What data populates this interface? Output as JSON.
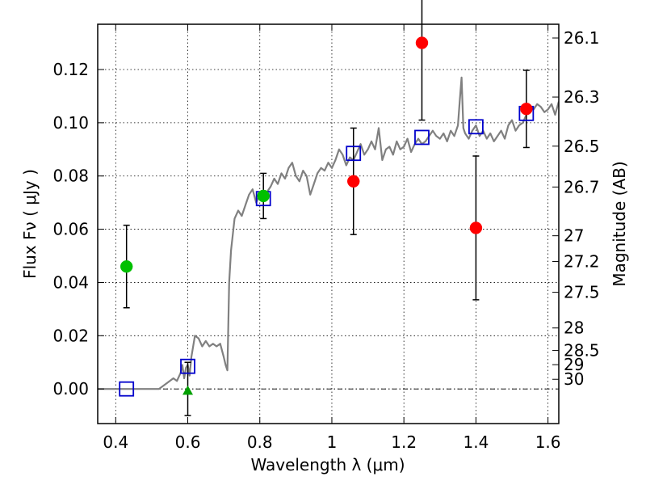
{
  "chart_data": {
    "type": "scatter",
    "xlabel": "Wavelength  λ (μm)",
    "ylabel": "Flux  Fν ( μJy )",
    "ylabel_right": "Magnitude (AB)",
    "xlim": [
      0.35,
      1.63
    ],
    "ylim": [
      -0.013,
      0.137
    ],
    "grid": true,
    "x_ticks": [
      {
        "value": 0.4,
        "label": "0.4"
      },
      {
        "value": 0.6,
        "label": "0.6"
      },
      {
        "value": 0.8,
        "label": "0.8"
      },
      {
        "value": 1.0,
        "label": "1"
      },
      {
        "value": 1.2,
        "label": "1.2"
      },
      {
        "value": 1.4,
        "label": "1.4"
      },
      {
        "value": 1.6,
        "label": "1.6"
      }
    ],
    "y_ticks": [
      {
        "value": 0.0,
        "label": "0.00"
      },
      {
        "value": 0.02,
        "label": "0.02"
      },
      {
        "value": 0.04,
        "label": "0.04"
      },
      {
        "value": 0.06,
        "label": "0.06"
      },
      {
        "value": 0.08,
        "label": "0.08"
      },
      {
        "value": 0.1,
        "label": "0.10"
      },
      {
        "value": 0.12,
        "label": "0.12"
      }
    ],
    "right_ticks": [
      {
        "mag": 26.1,
        "label": "26.1"
      },
      {
        "mag": 26.3,
        "label": "26.3"
      },
      {
        "mag": 26.5,
        "label": "26.5"
      },
      {
        "mag": 26.7,
        "label": "26.7"
      },
      {
        "mag": 27.0,
        "label": "27"
      },
      {
        "mag": 27.2,
        "label": "27.2"
      },
      {
        "mag": 27.5,
        "label": "27.5"
      },
      {
        "mag": 28.0,
        "label": "28"
      },
      {
        "mag": 28.5,
        "label": "28.5"
      },
      {
        "mag": 29.0,
        "label": "29"
      },
      {
        "mag": 30.0,
        "label": "30"
      }
    ],
    "series": [
      {
        "kind": "line",
        "color": "#808080",
        "x": [
          0.35,
          0.45,
          0.52,
          0.54,
          0.56,
          0.57,
          0.58,
          0.585,
          0.59,
          0.595,
          0.6,
          0.605,
          0.61,
          0.615,
          0.62,
          0.63,
          0.64,
          0.65,
          0.66,
          0.67,
          0.68,
          0.69,
          0.7,
          0.705,
          0.71,
          0.715,
          0.72,
          0.73,
          0.74,
          0.75,
          0.76,
          0.77,
          0.78,
          0.79,
          0.8,
          0.81,
          0.82,
          0.83,
          0.84,
          0.85,
          0.86,
          0.87,
          0.88,
          0.89,
          0.9,
          0.91,
          0.92,
          0.93,
          0.94,
          0.95,
          0.96,
          0.97,
          0.98,
          0.99,
          1.0,
          1.01,
          1.02,
          1.03,
          1.04,
          1.05,
          1.06,
          1.07,
          1.08,
          1.09,
          1.1,
          1.11,
          1.12,
          1.13,
          1.14,
          1.15,
          1.16,
          1.17,
          1.18,
          1.19,
          1.2,
          1.21,
          1.22,
          1.23,
          1.24,
          1.25,
          1.26,
          1.27,
          1.28,
          1.29,
          1.3,
          1.31,
          1.32,
          1.33,
          1.34,
          1.35,
          1.355,
          1.36,
          1.365,
          1.37,
          1.38,
          1.39,
          1.4,
          1.41,
          1.42,
          1.43,
          1.44,
          1.45,
          1.46,
          1.47,
          1.48,
          1.49,
          1.5,
          1.51,
          1.52,
          1.53,
          1.54,
          1.55,
          1.56,
          1.57,
          1.58,
          1.59,
          1.6,
          1.61,
          1.62,
          1.63
        ],
        "y": [
          0.0,
          0.0,
          0.0,
          0.002,
          0.004,
          0.003,
          0.006,
          0.009,
          0.004,
          0.008,
          0.009,
          0.005,
          0.012,
          0.016,
          0.02,
          0.019,
          0.016,
          0.018,
          0.016,
          0.017,
          0.016,
          0.017,
          0.012,
          0.009,
          0.007,
          0.04,
          0.052,
          0.064,
          0.067,
          0.065,
          0.069,
          0.073,
          0.075,
          0.07,
          0.073,
          0.071,
          0.074,
          0.076,
          0.079,
          0.077,
          0.081,
          0.079,
          0.083,
          0.085,
          0.08,
          0.078,
          0.082,
          0.08,
          0.073,
          0.077,
          0.081,
          0.083,
          0.082,
          0.085,
          0.083,
          0.086,
          0.09,
          0.088,
          0.084,
          0.087,
          0.086,
          0.089,
          0.092,
          0.088,
          0.09,
          0.093,
          0.09,
          0.098,
          0.086,
          0.09,
          0.091,
          0.088,
          0.093,
          0.09,
          0.091,
          0.094,
          0.089,
          0.092,
          0.094,
          0.092,
          0.093,
          0.095,
          0.097,
          0.095,
          0.094,
          0.096,
          0.093,
          0.097,
          0.095,
          0.099,
          0.108,
          0.117,
          0.098,
          0.096,
          0.094,
          0.097,
          0.099,
          0.095,
          0.097,
          0.094,
          0.096,
          0.093,
          0.095,
          0.097,
          0.094,
          0.099,
          0.101,
          0.097,
          0.099,
          0.1,
          0.103,
          0.106,
          0.105,
          0.107,
          0.106,
          0.104,
          0.105,
          0.107,
          0.103,
          0.108
        ]
      },
      {
        "kind": "errorbar",
        "color": "#000000",
        "points": [
          {
            "x": 0.43,
            "y": 0.046,
            "err": 0.0155
          },
          {
            "x": 0.6,
            "y": 0.0,
            "err": 0.01
          },
          {
            "x": 0.81,
            "y": 0.0725,
            "err": 0.0085
          },
          {
            "x": 1.06,
            "y": 0.078,
            "err": 0.02
          },
          {
            "x": 1.25,
            "y": 0.13,
            "err": 0.029
          },
          {
            "x": 1.4,
            "y": 0.0605,
            "err": 0.027
          },
          {
            "x": 1.54,
            "y": 0.1052,
            "err": 0.0145
          }
        ]
      },
      {
        "kind": "circle",
        "color": "#00c000",
        "points": [
          {
            "x": 0.43,
            "y": 0.046
          },
          {
            "x": 0.81,
            "y": 0.0725
          }
        ]
      },
      {
        "kind": "circle",
        "color": "#ff0000",
        "points": [
          {
            "x": 1.06,
            "y": 0.078
          },
          {
            "x": 1.25,
            "y": 0.13
          },
          {
            "x": 1.4,
            "y": 0.0605
          },
          {
            "x": 1.54,
            "y": 0.1052
          }
        ]
      },
      {
        "kind": "triangle",
        "color": "#00a000",
        "points": [
          {
            "x": 0.6,
            "y": -0.0005
          }
        ]
      },
      {
        "kind": "square",
        "color": "#0000cc",
        "points": [
          {
            "x": 0.43,
            "y": 0.0
          },
          {
            "x": 0.6,
            "y": 0.0085
          },
          {
            "x": 0.81,
            "y": 0.0715
          },
          {
            "x": 1.06,
            "y": 0.0885
          },
          {
            "x": 1.25,
            "y": 0.0945
          },
          {
            "x": 1.4,
            "y": 0.0985
          },
          {
            "x": 1.54,
            "y": 0.1035
          }
        ]
      }
    ]
  }
}
